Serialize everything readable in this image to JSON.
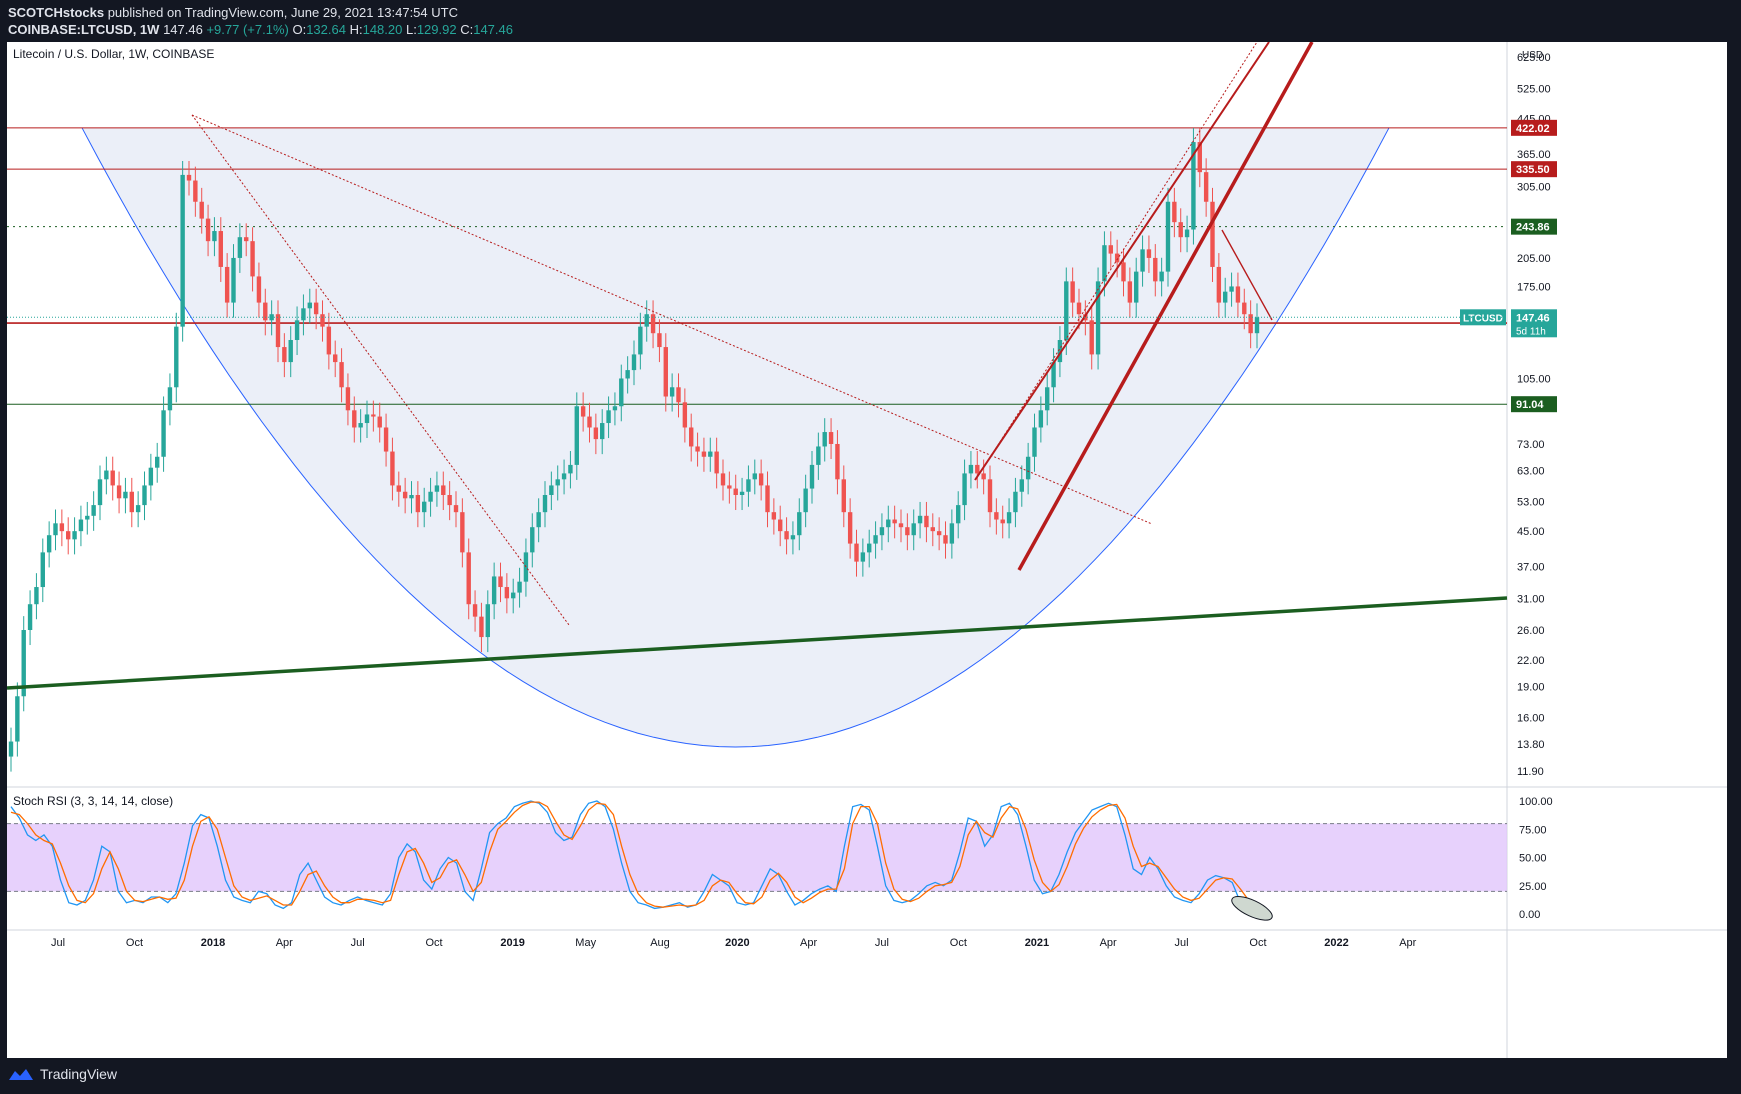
{
  "header": {
    "author": "SCOTCHstocks",
    "published_text": "published on TradingView.com, June 29, 2021 13:47:54 UTC",
    "symbol_line": "COINBASE:LTCUSD, 1W",
    "price": "147.46",
    "change": "+9.77 (+7.1%)",
    "ohlc": [
      {
        "label": "O:",
        "value": "132.64"
      },
      {
        "label": "H:",
        "value": "148.20"
      },
      {
        "label": "L:",
        "value": "129.92"
      },
      {
        "label": "C:",
        "value": "147.46"
      }
    ]
  },
  "footer": {
    "brand": "TradingView"
  },
  "colors": {
    "up": "#26a69a",
    "down": "#ef5350",
    "bg_dark": "#131722",
    "resistance": "#b71c1c",
    "support_green": "#1b5e20",
    "cup_fill": "#e8ecf7",
    "cup_line": "#2962ff",
    "rsi_k": "#2196f3",
    "rsi_d": "#ff6d00",
    "rsi_band": "#e1c5fb"
  },
  "chart_data": [
    {
      "type": "candlestick",
      "title": "Litecoin / U.S. Dollar, 1W, COINBASE",
      "y_scale": "log",
      "ylim": [
        11,
        650
      ],
      "currency": "USD",
      "y_ticks": [
        "625.00",
        "525.00",
        "445.00",
        "365.00",
        "305.00",
        "205.00",
        "175.00",
        "105.00",
        "73.00",
        "63.00",
        "53.00",
        "45.00",
        "37.00",
        "31.00",
        "26.00",
        "22.00",
        "19.00",
        "16.00",
        "13.80",
        "11.90"
      ],
      "x_ticks": [
        "Jul",
        "Oct",
        "2018",
        "Apr",
        "Jul",
        "Oct",
        "2019",
        "May",
        "Aug",
        "2020",
        "Apr",
        "Jul",
        "Oct",
        "2021",
        "Apr",
        "Jul",
        "Oct",
        "2022",
        "Apr"
      ],
      "x_ticks_bold": [
        "2018",
        "2019",
        "2020",
        "2021",
        "2022"
      ],
      "price_labels": [
        {
          "value": 422.02,
          "text": "422.02",
          "color": "#b71c1c"
        },
        {
          "value": 335.5,
          "text": "335.50",
          "color": "#b71c1c"
        },
        {
          "value": 243.86,
          "text": "243.86",
          "color": "#1b5e20"
        },
        {
          "value": 142.8,
          "text": "142.80",
          "color": "#b71c1c"
        },
        {
          "value": 91.04,
          "text": "91.04",
          "color": "#1b5e20"
        }
      ],
      "last_price_label": {
        "symbol": "LTCUSD",
        "value": "147.46",
        "countdown": "5d 11h"
      },
      "horizontal_lines": [
        {
          "value": 422.02,
          "style": "solid",
          "color": "#b71c1c"
        },
        {
          "value": 335.5,
          "style": "solid",
          "color": "#b71c1c"
        },
        {
          "value": 243.86,
          "style": "dotted",
          "color": "#1b5e20"
        },
        {
          "value": 142.8,
          "style": "solid",
          "color": "#b71c1c"
        },
        {
          "value": 91.04,
          "style": "solid",
          "color": "#1b5e20"
        }
      ],
      "series_close": [
        14,
        18,
        26,
        30,
        33,
        40,
        44,
        47,
        45,
        43,
        45,
        48,
        49,
        52,
        60,
        63,
        58,
        54,
        56,
        50,
        52,
        58,
        64,
        68,
        88,
        100,
        140,
        325,
        315,
        280,
        255,
        225,
        238,
        195,
        160,
        205,
        230,
        225,
        185,
        160,
        145,
        150,
        125,
        115,
        130,
        145,
        155,
        160,
        150,
        140,
        120,
        115,
        100,
        88,
        80,
        82,
        86,
        85,
        80,
        70,
        58,
        56,
        54,
        55,
        50,
        53,
        56,
        58,
        55,
        52,
        50,
        40,
        30,
        28,
        25,
        30,
        35,
        33,
        31,
        32,
        34,
        40,
        46,
        50,
        55,
        58,
        60,
        62,
        65,
        90,
        85,
        80,
        75,
        82,
        88,
        90,
        105,
        110,
        120,
        140,
        150,
        135,
        125,
        95,
        100,
        92,
        80,
        72,
        70,
        68,
        70,
        62,
        58,
        57,
        55,
        56,
        60,
        62,
        58,
        50,
        48,
        45,
        43,
        44,
        50,
        57,
        65,
        72,
        78,
        73,
        60,
        50,
        42,
        38,
        40,
        42,
        44,
        46,
        48,
        47,
        46,
        44,
        47,
        49,
        46,
        45,
        44,
        42,
        47,
        52,
        62,
        65,
        62,
        60,
        50,
        48,
        47,
        50,
        56,
        60,
        68,
        80,
        88,
        100,
        115,
        130,
        180,
        160,
        150,
        145,
        120,
        180,
        220,
        210,
        200,
        180,
        160,
        190,
        215,
        205,
        180,
        190,
        280,
        250,
        230,
        240,
        390,
        330,
        280,
        195,
        160,
        170,
        175,
        160,
        150,
        135,
        147.46
      ],
      "series_dates": [
        "2017-05",
        "2021-06"
      ],
      "trendlines": [
        {
          "name": "cup",
          "type": "curve"
        },
        {
          "name": "long-term support",
          "color": "#1b5e20"
        },
        {
          "name": "rising channel",
          "color": "#b71c1c"
        }
      ]
    },
    {
      "type": "line",
      "title": "Stoch RSI (3, 3, 14, 14, close)",
      "ylim": [
        0,
        100
      ],
      "y_ticks": [
        "100.00",
        "75.00",
        "50.00",
        "25.00",
        "0.00"
      ],
      "band": [
        20,
        80
      ],
      "series": [
        {
          "name": "K",
          "color": "#2196f3",
          "values": [
            95,
            85,
            70,
            65,
            70,
            60,
            30,
            10,
            8,
            12,
            30,
            60,
            55,
            20,
            10,
            12,
            10,
            15,
            15,
            10,
            18,
            45,
            78,
            88,
            85,
            60,
            30,
            15,
            12,
            10,
            20,
            18,
            8,
            5,
            10,
            35,
            45,
            30,
            15,
            10,
            8,
            12,
            15,
            12,
            10,
            8,
            18,
            50,
            62,
            55,
            30,
            22,
            40,
            50,
            45,
            20,
            12,
            40,
            72,
            80,
            85,
            95,
            98,
            100,
            98,
            90,
            72,
            65,
            68,
            88,
            98,
            100,
            95,
            75,
            45,
            20,
            10,
            8,
            5,
            6,
            8,
            10,
            6,
            8,
            20,
            35,
            30,
            25,
            10,
            8,
            10,
            25,
            40,
            35,
            20,
            8,
            12,
            18,
            22,
            25,
            20,
            60,
            95,
            97,
            92,
            60,
            25,
            12,
            10,
            12,
            18,
            25,
            28,
            25,
            30,
            55,
            85,
            82,
            60,
            70,
            95,
            98,
            88,
            60,
            30,
            18,
            20,
            35,
            55,
            72,
            82,
            92,
            95,
            98,
            95,
            70,
            40,
            35,
            50,
            40,
            25,
            15,
            12,
            10,
            18,
            30,
            34,
            32,
            28,
            10,
            6,
            8
          ]
        },
        {
          "name": "D",
          "color": "#ff6d00",
          "values": [
            90,
            88,
            80,
            70,
            65,
            62,
            45,
            25,
            12,
            10,
            18,
            40,
            55,
            40,
            20,
            12,
            11,
            13,
            15,
            13,
            14,
            30,
            60,
            82,
            86,
            75,
            50,
            25,
            15,
            12,
            14,
            16,
            12,
            8,
            8,
            20,
            35,
            38,
            25,
            15,
            10,
            10,
            13,
            13,
            12,
            10,
            12,
            35,
            55,
            58,
            45,
            28,
            32,
            45,
            48,
            35,
            20,
            28,
            55,
            75,
            82,
            90,
            96,
            99,
            99,
            95,
            82,
            70,
            66,
            78,
            92,
            98,
            97,
            88,
            60,
            35,
            18,
            10,
            7,
            6,
            7,
            8,
            7,
            8,
            12,
            25,
            30,
            28,
            18,
            10,
            9,
            15,
            30,
            36,
            28,
            15,
            10,
            14,
            19,
            22,
            22,
            40,
            80,
            95,
            95,
            80,
            45,
            22,
            13,
            11,
            14,
            20,
            25,
            26,
            28,
            42,
            70,
            82,
            72,
            68,
            85,
            95,
            93,
            75,
            48,
            28,
            20,
            26,
            42,
            62,
            76,
            86,
            92,
            96,
            97,
            85,
            60,
            42,
            45,
            42,
            32,
            22,
            15,
            12,
            14,
            22,
            30,
            32,
            31,
            22,
            12,
            8
          ]
        }
      ]
    }
  ]
}
